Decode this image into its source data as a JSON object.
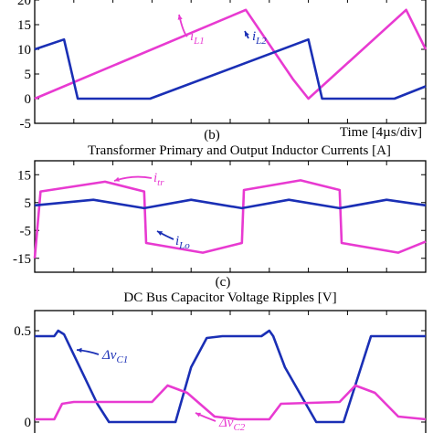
{
  "colors": {
    "blue": "#1a2fb5",
    "magenta": "#e83ad1",
    "axis": "#000000"
  },
  "chart_data": [
    {
      "type": "line",
      "panel": "(b)",
      "title": "",
      "xlabel": "Time [4µs/div]",
      "ylabel": "",
      "ylim": [
        -5,
        20
      ],
      "yticks": [
        "20",
        "15",
        "10",
        "5",
        "0",
        "-5"
      ],
      "xlim": [
        0,
        10
      ],
      "series": [
        {
          "name": "i_L1",
          "color": "magenta",
          "x": [
            0,
            5.4,
            6.6,
            7.0,
            9.5,
            10
          ],
          "y": [
            0,
            18,
            4,
            0,
            18,
            10
          ]
        },
        {
          "name": "i_L2",
          "color": "blue",
          "x": [
            0,
            0.75,
            1.1,
            2.95,
            7.0,
            7.35,
            9.2,
            10
          ],
          "y": [
            10,
            12,
            0,
            0,
            12,
            0,
            0,
            2.5
          ]
        }
      ],
      "labels": [
        {
          "series": 0,
          "base": "i",
          "sub": "L1"
        },
        {
          "series": 1,
          "base": "i",
          "sub": "L2"
        }
      ]
    },
    {
      "type": "line",
      "panel": "(c)",
      "title": "Transformer Primary and Output Inductor Currents [A]",
      "xlabel": "",
      "ylabel": "",
      "ylim": [
        -20,
        20
      ],
      "yticks": [
        "15",
        "5",
        "-5",
        "-15"
      ],
      "xlim": [
        0,
        10
      ],
      "series": [
        {
          "name": "i_tr",
          "color": "magenta",
          "x": [
            0,
            0.15,
            1.8,
            2.8,
            2.85,
            4.3,
            5.3,
            5.35,
            6.8,
            7.8,
            7.85,
            9.3,
            10
          ],
          "y": [
            -15,
            9,
            12.5,
            9,
            -9.5,
            -13,
            -9.5,
            9.5,
            13,
            9.5,
            -9.5,
            -13,
            -9
          ]
        },
        {
          "name": "i_Lo",
          "color": "blue",
          "x": [
            0,
            1.5,
            2.8,
            4.0,
            5.3,
            6.5,
            7.8,
            9.0,
            10
          ],
          "y": [
            4,
            6,
            3,
            6,
            3,
            6,
            3,
            6,
            4
          ]
        }
      ],
      "labels": [
        {
          "series": 0,
          "base": "i",
          "sub": "tr"
        },
        {
          "series": 1,
          "base": "i",
          "sub": "Lo"
        }
      ]
    },
    {
      "type": "line",
      "panel": "",
      "title": "DC Bus Capacitor Voltage Ripples [V]",
      "xlabel": "",
      "ylabel": "",
      "ylim": [
        0,
        0.6
      ],
      "yticks": [
        "0.5",
        "0"
      ],
      "xlim": [
        0,
        10
      ],
      "series": [
        {
          "name": "Δv_C1",
          "color": "blue",
          "x": [
            0,
            0.5,
            0.6,
            0.75,
            1.6,
            1.9,
            2.3,
            3.6,
            4.0,
            4.4,
            4.8,
            5.8,
            6.0,
            6.1,
            6.4,
            7.2,
            7.4,
            7.9,
            8.6,
            10
          ],
          "y": [
            0.47,
            0.47,
            0.5,
            0.48,
            0.1,
            0,
            0,
            0,
            0.3,
            0.46,
            0.47,
            0.47,
            0.5,
            0.47,
            0.3,
            0,
            0,
            0,
            0.47,
            0.47
          ]
        },
        {
          "name": "Δv_C2",
          "color": "magenta",
          "x": [
            0,
            0.5,
            0.7,
            1.0,
            3.0,
            3.4,
            3.9,
            4.6,
            5.2,
            6.0,
            6.3,
            7.8,
            8.2,
            8.7,
            9.3,
            10
          ],
          "y": [
            0.015,
            0.015,
            0.1,
            0.11,
            0.11,
            0.2,
            0.16,
            0.03,
            0.015,
            0.015,
            0.1,
            0.11,
            0.2,
            0.16,
            0.03,
            0.015
          ]
        }
      ],
      "labels": [
        {
          "series": 0,
          "base": "Δv",
          "sub": "C1"
        },
        {
          "series": 1,
          "base": "Δv",
          "sub": "C2"
        }
      ]
    }
  ]
}
